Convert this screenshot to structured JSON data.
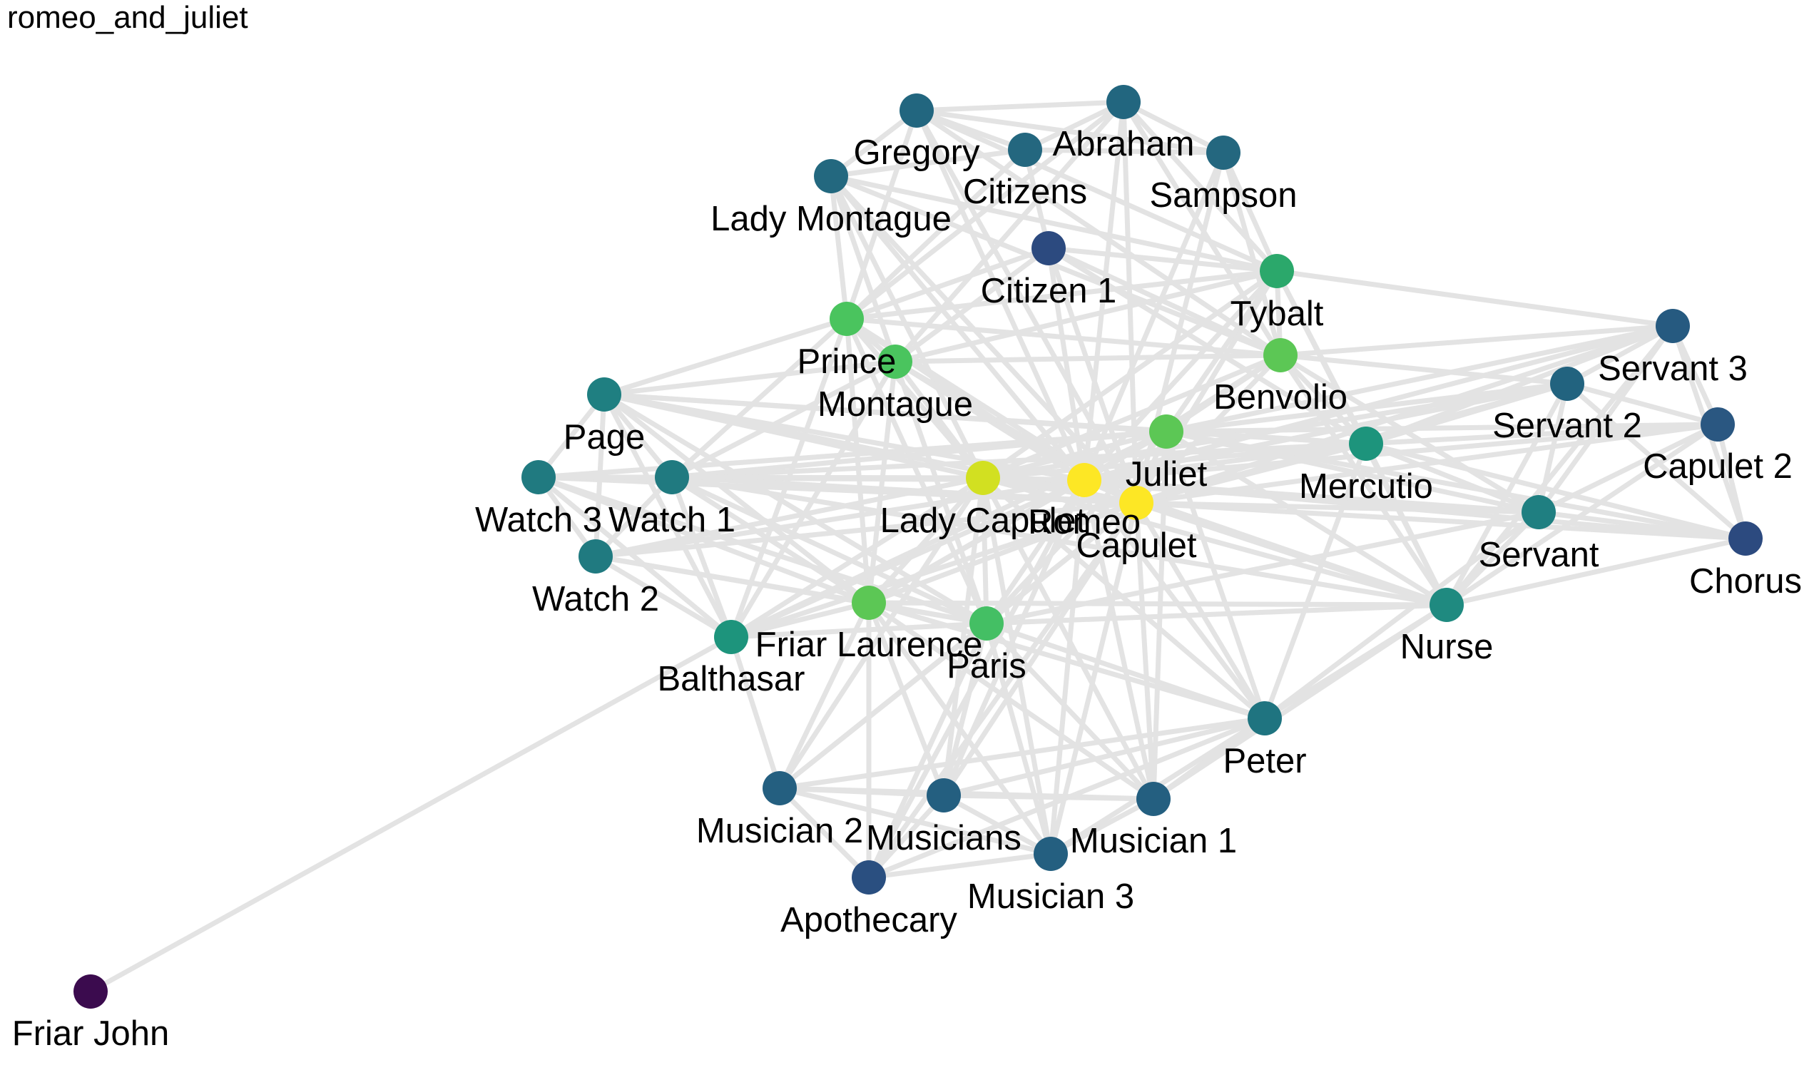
{
  "title": "romeo_and_juliet",
  "colors": {
    "edge": "#e3e3e3",
    "label": "#000000",
    "background": "#ffffff"
  },
  "nodes": [
    {
      "id": "Abraham",
      "label": "Abraham",
      "color": "#22667f"
    },
    {
      "id": "Gregory",
      "label": "Gregory",
      "color": "#22667f"
    },
    {
      "id": "Citizens",
      "label": "Citizens",
      "color": "#24677f"
    },
    {
      "id": "Sampson",
      "label": "Sampson",
      "color": "#24677f"
    },
    {
      "id": "Lady Montague",
      "label": "Lady Montague",
      "color": "#23687f"
    },
    {
      "id": "Citizen 1",
      "label": "Citizen 1",
      "color": "#2c4a7f"
    },
    {
      "id": "Tybalt",
      "label": "Tybalt",
      "color": "#2ba86b"
    },
    {
      "id": "Prince",
      "label": "Prince",
      "color": "#4ac45e"
    },
    {
      "id": "Montague",
      "label": "Montague",
      "color": "#4ac45e"
    },
    {
      "id": "Benvolio",
      "label": "Benvolio",
      "color": "#5cc755"
    },
    {
      "id": "Servant 3",
      "label": "Servant 3",
      "color": "#265a80"
    },
    {
      "id": "Servant 2",
      "label": "Servant 2",
      "color": "#22637f"
    },
    {
      "id": "Capulet 2",
      "label": "Capulet 2",
      "color": "#2a5781"
    },
    {
      "id": "Page",
      "label": "Page",
      "color": "#1f7f81"
    },
    {
      "id": "Juliet",
      "label": "Juliet",
      "color": "#5cc755"
    },
    {
      "id": "Mercutio",
      "label": "Mercutio",
      "color": "#1d947c"
    },
    {
      "id": "Watch 3",
      "label": "Watch 3",
      "color": "#207a80"
    },
    {
      "id": "Watch 1",
      "label": "Watch 1",
      "color": "#207a80"
    },
    {
      "id": "Lady Capulet",
      "label": "Lady Capulet",
      "color": "#d2e021"
    },
    {
      "id": "Romeo",
      "label": "Romeo",
      "color": "#fde725"
    },
    {
      "id": "Capulet",
      "label": "Capulet",
      "color": "#fde725"
    },
    {
      "id": "Servant",
      "label": "Servant",
      "color": "#1f7f81"
    },
    {
      "id": "Chorus",
      "label": "Chorus",
      "color": "#2c4a7f"
    },
    {
      "id": "Watch 2",
      "label": "Watch 2",
      "color": "#207a80"
    },
    {
      "id": "Nurse",
      "label": "Nurse",
      "color": "#1f8a80"
    },
    {
      "id": "Friar Laurence",
      "label": "Friar Laurence",
      "color": "#5cc755"
    },
    {
      "id": "Paris",
      "label": "Paris",
      "color": "#44bf64"
    },
    {
      "id": "Balthasar",
      "label": "Balthasar",
      "color": "#1d947c"
    },
    {
      "id": "Peter",
      "label": "Peter",
      "color": "#1f7480"
    },
    {
      "id": "Musician 2",
      "label": "Musician 2",
      "color": "#245f80"
    },
    {
      "id": "Musicians",
      "label": "Musicians",
      "color": "#245f80"
    },
    {
      "id": "Musician 1",
      "label": "Musician 1",
      "color": "#245f80"
    },
    {
      "id": "Apothecary",
      "label": "Apothecary",
      "color": "#2a4f80"
    },
    {
      "id": "Musician 3",
      "label": "Musician 3",
      "color": "#245f80"
    },
    {
      "id": "Friar John",
      "label": "Friar John",
      "color": "#3b0b4e"
    }
  ],
  "edges": [
    [
      "Friar John",
      "Balthasar"
    ],
    [
      "Gregory",
      "Abraham"
    ],
    [
      "Gregory",
      "Citizens"
    ],
    [
      "Gregory",
      "Sampson"
    ],
    [
      "Gregory",
      "Lady Montague"
    ],
    [
      "Abraham",
      "Sampson"
    ],
    [
      "Abraham",
      "Citizens"
    ],
    [
      "Abraham",
      "Tybalt"
    ],
    [
      "Abraham",
      "Benvolio"
    ],
    [
      "Citizens",
      "Sampson"
    ],
    [
      "Citizens",
      "Lady Montague"
    ],
    [
      "Citizens",
      "Citizen 1"
    ],
    [
      "Citizens",
      "Prince"
    ],
    [
      "Sampson",
      "Tybalt"
    ],
    [
      "Sampson",
      "Capulet"
    ],
    [
      "Sampson",
      "Romeo"
    ],
    [
      "Sampson",
      "Benvolio"
    ],
    [
      "Lady Montague",
      "Prince"
    ],
    [
      "Lady Montague",
      "Montague"
    ],
    [
      "Lady Montague",
      "Romeo"
    ],
    [
      "Lady Montague",
      "Benvolio"
    ],
    [
      "Lady Montague",
      "Lady Capulet"
    ],
    [
      "Lady Montague",
      "Capulet"
    ],
    [
      "Lady Montague",
      "Tybalt"
    ],
    [
      "Gregory",
      "Capulet"
    ],
    [
      "Gregory",
      "Romeo"
    ],
    [
      "Gregory",
      "Benvolio"
    ],
    [
      "Gregory",
      "Tybalt"
    ],
    [
      "Gregory",
      "Prince"
    ],
    [
      "Abraham",
      "Romeo"
    ],
    [
      "Abraham",
      "Capulet"
    ],
    [
      "Abraham",
      "Prince"
    ],
    [
      "Abraham",
      "Montague"
    ],
    [
      "Citizen 1",
      "Tybalt"
    ],
    [
      "Citizen 1",
      "Prince"
    ],
    [
      "Citizen 1",
      "Benvolio"
    ],
    [
      "Citizen 1",
      "Romeo"
    ],
    [
      "Citizen 1",
      "Montague"
    ],
    [
      "Citizen 1",
      "Mercutio"
    ],
    [
      "Citizen 1",
      "Capulet"
    ],
    [
      "Tybalt",
      "Benvolio"
    ],
    [
      "Tybalt",
      "Romeo"
    ],
    [
      "Tybalt",
      "Capulet"
    ],
    [
      "Tybalt",
      "Mercutio"
    ],
    [
      "Tybalt",
      "Juliet"
    ],
    [
      "Tybalt",
      "Servant 3"
    ],
    [
      "Tybalt",
      "Lady Capulet"
    ],
    [
      "Tybalt",
      "Prince"
    ],
    [
      "Tybalt",
      "Montague"
    ],
    [
      "Tybalt",
      "Nurse"
    ],
    [
      "Prince",
      "Montague"
    ],
    [
      "Prince",
      "Benvolio"
    ],
    [
      "Prince",
      "Romeo"
    ],
    [
      "Prince",
      "Capulet"
    ],
    [
      "Prince",
      "Lady Capulet"
    ],
    [
      "Prince",
      "Page"
    ],
    [
      "Prince",
      "Watch 1"
    ],
    [
      "Prince",
      "Balthasar"
    ],
    [
      "Prince",
      "Friar Laurence"
    ],
    [
      "Prince",
      "Paris"
    ],
    [
      "Montague",
      "Benvolio"
    ],
    [
      "Montague",
      "Romeo"
    ],
    [
      "Montague",
      "Capulet"
    ],
    [
      "Montague",
      "Lady Capulet"
    ],
    [
      "Montague",
      "Page"
    ],
    [
      "Montague",
      "Watch 1"
    ],
    [
      "Montague",
      "Balthasar"
    ],
    [
      "Montague",
      "Friar Laurence"
    ],
    [
      "Montague",
      "Paris"
    ],
    [
      "Benvolio",
      "Romeo"
    ],
    [
      "Benvolio",
      "Mercutio"
    ],
    [
      "Benvolio",
      "Capulet"
    ],
    [
      "Benvolio",
      "Juliet"
    ],
    [
      "Benvolio",
      "Servant 3"
    ],
    [
      "Benvolio",
      "Servant 2"
    ],
    [
      "Benvolio",
      "Nurse"
    ],
    [
      "Benvolio",
      "Servant"
    ],
    [
      "Benvolio",
      "Lady Capulet"
    ],
    [
      "Servant 3",
      "Servant 2"
    ],
    [
      "Servant 3",
      "Capulet 2"
    ],
    [
      "Servant 3",
      "Capulet"
    ],
    [
      "Servant 3",
      "Juliet"
    ],
    [
      "Servant 3",
      "Romeo"
    ],
    [
      "Servant 3",
      "Servant"
    ],
    [
      "Servant 3",
      "Nurse"
    ],
    [
      "Servant 3",
      "Chorus"
    ],
    [
      "Servant 3",
      "Mercutio"
    ],
    [
      "Servant 2",
      "Capulet 2"
    ],
    [
      "Servant 2",
      "Capulet"
    ],
    [
      "Servant 2",
      "Romeo"
    ],
    [
      "Servant 2",
      "Servant"
    ],
    [
      "Servant 2",
      "Juliet"
    ],
    [
      "Servant 2",
      "Nurse"
    ],
    [
      "Servant 2",
      "Chorus"
    ],
    [
      "Servant 2",
      "Lady Capulet"
    ],
    [
      "Servant 2",
      "Mercutio"
    ],
    [
      "Capulet 2",
      "Capulet"
    ],
    [
      "Capulet 2",
      "Romeo"
    ],
    [
      "Capulet 2",
      "Servant"
    ],
    [
      "Capulet 2",
      "Juliet"
    ],
    [
      "Capulet 2",
      "Chorus"
    ],
    [
      "Capulet 2",
      "Nurse"
    ],
    [
      "Capulet 2",
      "Mercutio"
    ],
    [
      "Chorus",
      "Romeo"
    ],
    [
      "Chorus",
      "Juliet"
    ],
    [
      "Chorus",
      "Nurse"
    ],
    [
      "Chorus",
      "Servant"
    ],
    [
      "Chorus",
      "Capulet"
    ],
    [
      "Chorus",
      "Mercutio"
    ],
    [
      "Servant",
      "Romeo"
    ],
    [
      "Servant",
      "Capulet"
    ],
    [
      "Servant",
      "Juliet"
    ],
    [
      "Servant",
      "Nurse"
    ],
    [
      "Servant",
      "Lady Capulet"
    ],
    [
      "Servant",
      "Mercutio"
    ],
    [
      "Servant",
      "Peter"
    ],
    [
      "Servant",
      "Paris"
    ],
    [
      "Nurse",
      "Romeo"
    ],
    [
      "Nurse",
      "Juliet"
    ],
    [
      "Nurse",
      "Capulet"
    ],
    [
      "Nurse",
      "Lady Capulet"
    ],
    [
      "Nurse",
      "Peter"
    ],
    [
      "Nurse",
      "Mercutio"
    ],
    [
      "Nurse",
      "Paris"
    ],
    [
      "Nurse",
      "Friar Laurence"
    ],
    [
      "Nurse",
      "Musician 1"
    ],
    [
      "Nurse",
      "Watch 1"
    ],
    [
      "Mercutio",
      "Romeo"
    ],
    [
      "Mercutio",
      "Juliet"
    ],
    [
      "Mercutio",
      "Capulet"
    ],
    [
      "Mercutio",
      "Lady Capulet"
    ],
    [
      "Mercutio",
      "Peter"
    ],
    [
      "Mercutio",
      "Page"
    ],
    [
      "Mercutio",
      "Watch 1"
    ],
    [
      "Juliet",
      "Romeo"
    ],
    [
      "Juliet",
      "Capulet"
    ],
    [
      "Juliet",
      "Lady Capulet"
    ],
    [
      "Juliet",
      "Friar Laurence"
    ],
    [
      "Juliet",
      "Paris"
    ],
    [
      "Juliet",
      "Balthasar"
    ],
    [
      "Juliet",
      "Page"
    ],
    [
      "Juliet",
      "Watch 1"
    ],
    [
      "Juliet",
      "Watch 3"
    ],
    [
      "Juliet",
      "Musician 1"
    ],
    [
      "Juliet",
      "Peter"
    ],
    [
      "Romeo",
      "Capulet"
    ],
    [
      "Romeo",
      "Lady Capulet"
    ],
    [
      "Romeo",
      "Friar Laurence"
    ],
    [
      "Romeo",
      "Paris"
    ],
    [
      "Romeo",
      "Balthasar"
    ],
    [
      "Romeo",
      "Page"
    ],
    [
      "Romeo",
      "Watch 1"
    ],
    [
      "Romeo",
      "Watch 2"
    ],
    [
      "Romeo",
      "Watch 3"
    ],
    [
      "Romeo",
      "Apothecary"
    ],
    [
      "Romeo",
      "Musicians"
    ],
    [
      "Romeo",
      "Musician 1"
    ],
    [
      "Romeo",
      "Musician 3"
    ],
    [
      "Romeo",
      "Peter"
    ],
    [
      "Capulet",
      "Lady Capulet"
    ],
    [
      "Capulet",
      "Friar Laurence"
    ],
    [
      "Capulet",
      "Paris"
    ],
    [
      "Capulet",
      "Balthasar"
    ],
    [
      "Capulet",
      "Page"
    ],
    [
      "Capulet",
      "Watch 1"
    ],
    [
      "Capulet",
      "Watch 2"
    ],
    [
      "Capulet",
      "Watch 3"
    ],
    [
      "Capulet",
      "Peter"
    ],
    [
      "Capulet",
      "Musician 1"
    ],
    [
      "Capulet",
      "Musician 2"
    ],
    [
      "Capulet",
      "Musicians"
    ],
    [
      "Capulet",
      "Musician 3"
    ],
    [
      "Capulet",
      "Apothecary"
    ],
    [
      "Lady Capulet",
      "Friar Laurence"
    ],
    [
      "Lady Capulet",
      "Paris"
    ],
    [
      "Lady Capulet",
      "Balthasar"
    ],
    [
      "Lady Capulet",
      "Page"
    ],
    [
      "Lady Capulet",
      "Watch 1"
    ],
    [
      "Lady Capulet",
      "Watch 2"
    ],
    [
      "Lady Capulet",
      "Watch 3"
    ],
    [
      "Lady Capulet",
      "Peter"
    ],
    [
      "Lady Capulet",
      "Musician 1"
    ],
    [
      "Lady Capulet",
      "Musician 2"
    ],
    [
      "Lady Capulet",
      "Musicians"
    ],
    [
      "Lady Capulet",
      "Musician 3"
    ],
    [
      "Friar Laurence",
      "Paris"
    ],
    [
      "Friar Laurence",
      "Balthasar"
    ],
    [
      "Friar Laurence",
      "Page"
    ],
    [
      "Friar Laurence",
      "Watch 1"
    ],
    [
      "Friar Laurence",
      "Watch 2"
    ],
    [
      "Friar Laurence",
      "Watch 3"
    ],
    [
      "Friar Laurence",
      "Musician 2"
    ],
    [
      "Friar Laurence",
      "Musicians"
    ],
    [
      "Friar Laurence",
      "Musician 3"
    ],
    [
      "Friar Laurence",
      "Apothecary"
    ],
    [
      "Friar Laurence",
      "Peter"
    ],
    [
      "Friar Laurence",
      "Musician 1"
    ],
    [
      "Paris",
      "Balthasar"
    ],
    [
      "Paris",
      "Page"
    ],
    [
      "Paris",
      "Watch 1"
    ],
    [
      "Paris",
      "Watch 2"
    ],
    [
      "Paris",
      "Watch 3"
    ],
    [
      "Paris",
      "Musician 1"
    ],
    [
      "Paris",
      "Musician 2"
    ],
    [
      "Paris",
      "Musicians"
    ],
    [
      "Paris",
      "Musician 3"
    ],
    [
      "Paris",
      "Peter"
    ],
    [
      "Paris",
      "Apothecary"
    ],
    [
      "Balthasar",
      "Page"
    ],
    [
      "Balthasar",
      "Watch 1"
    ],
    [
      "Balthasar",
      "Watch 2"
    ],
    [
      "Balthasar",
      "Watch 3"
    ],
    [
      "Balthasar",
      "Musician 2"
    ],
    [
      "Page",
      "Watch 1"
    ],
    [
      "Page",
      "Watch 2"
    ],
    [
      "Page",
      "Watch 3"
    ],
    [
      "Watch 1",
      "Watch 2"
    ],
    [
      "Watch 1",
      "Watch 3"
    ],
    [
      "Watch 2",
      "Watch 3"
    ],
    [
      "Peter",
      "Musician 1"
    ],
    [
      "Peter",
      "Musician 2"
    ],
    [
      "Peter",
      "Musicians"
    ],
    [
      "Peter",
      "Musician 3"
    ],
    [
      "Peter",
      "Apothecary"
    ],
    [
      "Musician 1",
      "Musician 2"
    ],
    [
      "Musician 1",
      "Musicians"
    ],
    [
      "Musician 1",
      "Musician 3"
    ],
    [
      "Musician 2",
      "Musicians"
    ],
    [
      "Musician 2",
      "Musician 3"
    ],
    [
      "Musician 2",
      "Apothecary"
    ],
    [
      "Musicians",
      "Musician 3"
    ],
    [
      "Musicians",
      "Apothecary"
    ],
    [
      "Musician 3",
      "Apothecary"
    ]
  ]
}
